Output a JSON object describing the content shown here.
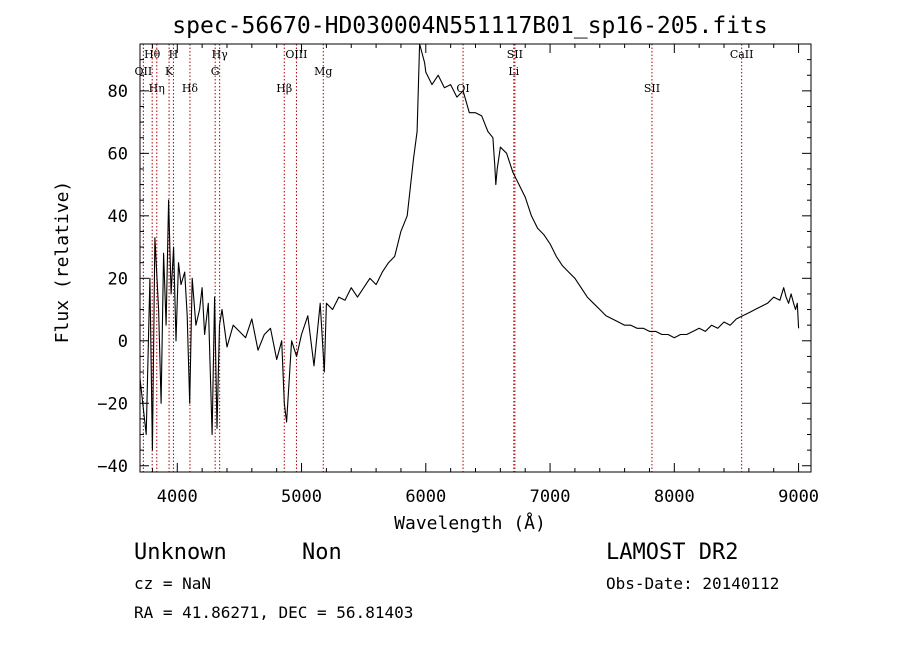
{
  "chart_data": {
    "type": "line",
    "title": "spec-56670-HD030004N551117B01_sp16-205.fits",
    "xlabel": "Wavelength (Å)",
    "ylabel": "Flux (relative)",
    "xlim": [
      3700,
      9100
    ],
    "ylim": [
      -42,
      95
    ],
    "x_ticks": [
      4000,
      5000,
      6000,
      7000,
      8000,
      9000
    ],
    "y_ticks": [
      -40,
      -20,
      0,
      20,
      40,
      60,
      80
    ],
    "grid": false,
    "series": [
      {
        "x": [
          3700,
          3750,
          3780,
          3800,
          3820,
          3850,
          3870,
          3890,
          3910,
          3930,
          3950,
          3970,
          3990,
          4010,
          4030,
          4060,
          4080,
          4100,
          4120,
          4150,
          4180,
          4200,
          4220,
          4250,
          4280,
          4300,
          4320,
          4340,
          4360,
          4400,
          4450,
          4500,
          4550,
          4600,
          4650,
          4700,
          4750,
          4800,
          4840,
          4861,
          4880,
          4920,
          4960,
          5000,
          5050,
          5100,
          5150,
          5183,
          5200,
          5250,
          5300,
          5350,
          5400,
          5450,
          5500,
          5550,
          5600,
          5650,
          5700,
          5750,
          5800,
          5850,
          5900,
          5930,
          5950,
          5970,
          5990,
          6000,
          6050,
          6100,
          6150,
          6200,
          6250,
          6300,
          6350,
          6400,
          6450,
          6500,
          6540,
          6555,
          6563,
          6575,
          6600,
          6650,
          6700,
          6750,
          6800,
          6850,
          6900,
          6950,
          7000,
          7050,
          7100,
          7150,
          7200,
          7250,
          7300,
          7350,
          7400,
          7450,
          7500,
          7550,
          7600,
          7650,
          7700,
          7750,
          7800,
          7850,
          7900,
          7950,
          8000,
          8050,
          8100,
          8150,
          8200,
          8250,
          8300,
          8350,
          8400,
          8450,
          8500,
          8550,
          8600,
          8650,
          8700,
          8750,
          8800,
          8850,
          8880,
          8900,
          8920,
          8940,
          8960,
          8975,
          8990,
          9000
        ],
        "y": [
          -12,
          -30,
          20,
          -35,
          33,
          10,
          -20,
          28,
          5,
          45,
          15,
          30,
          0,
          25,
          18,
          22,
          8,
          -20,
          20,
          5,
          10,
          17,
          2,
          12,
          -30,
          14,
          -28,
          5,
          10,
          -2,
          5,
          3,
          1,
          7,
          -3,
          2,
          4,
          -6,
          0,
          -20,
          -26,
          0,
          -5,
          2,
          8,
          -8,
          12,
          -10,
          12,
          10,
          14,
          13,
          17,
          14,
          17,
          20,
          18,
          22,
          25,
          27,
          35,
          40,
          58,
          67,
          95,
          92,
          89,
          86,
          82,
          85,
          81,
          82,
          78,
          80,
          73,
          73,
          72,
          67,
          65,
          56,
          50,
          55,
          62,
          60,
          54,
          50,
          46,
          40,
          36,
          34,
          31,
          27,
          24,
          22,
          20,
          17,
          14,
          12,
          10,
          8,
          7,
          6,
          5,
          5,
          4,
          4,
          3,
          3,
          2,
          2,
          1,
          2,
          2,
          3,
          4,
          3,
          5,
          4,
          6,
          5,
          7,
          8,
          9,
          10,
          11,
          12,
          14,
          13,
          17,
          14,
          12,
          15,
          12,
          10,
          12,
          4
        ]
      }
    ],
    "lines": [
      {
        "name": "H",
        "x": 3969
      },
      {
        "name": "K",
        "x": 3934
      },
      {
        "name": "Hη",
        "x": 3835
      },
      {
        "name": "Hθ",
        "x": 3798
      },
      {
        "name": "OII",
        "x": 3727
      },
      {
        "name": "Hδ",
        "x": 4102
      },
      {
        "name": "Hγ",
        "x": 4341
      },
      {
        "name": "G",
        "x": 4305
      },
      {
        "name": "Hβ",
        "x": 4861
      },
      {
        "name": "OIII",
        "x": 4959
      },
      {
        "name": "Mg",
        "x": 5175
      },
      {
        "name": "OI",
        "x": 6300
      },
      {
        "name": "SII",
        "x": 6717
      },
      {
        "name": "Li",
        "x": 6708
      },
      {
        "name": "SII",
        "x": 7820
      },
      {
        "name": "CaII",
        "x": 8542
      }
    ]
  },
  "info": {
    "object_type": "Unknown",
    "subclass": "Non",
    "survey": "LAMOST DR2",
    "cz": "cz = NaN",
    "obs_date": "Obs-Date: 20140112",
    "coords": "RA =  41.86271, DEC =  56.81403"
  }
}
